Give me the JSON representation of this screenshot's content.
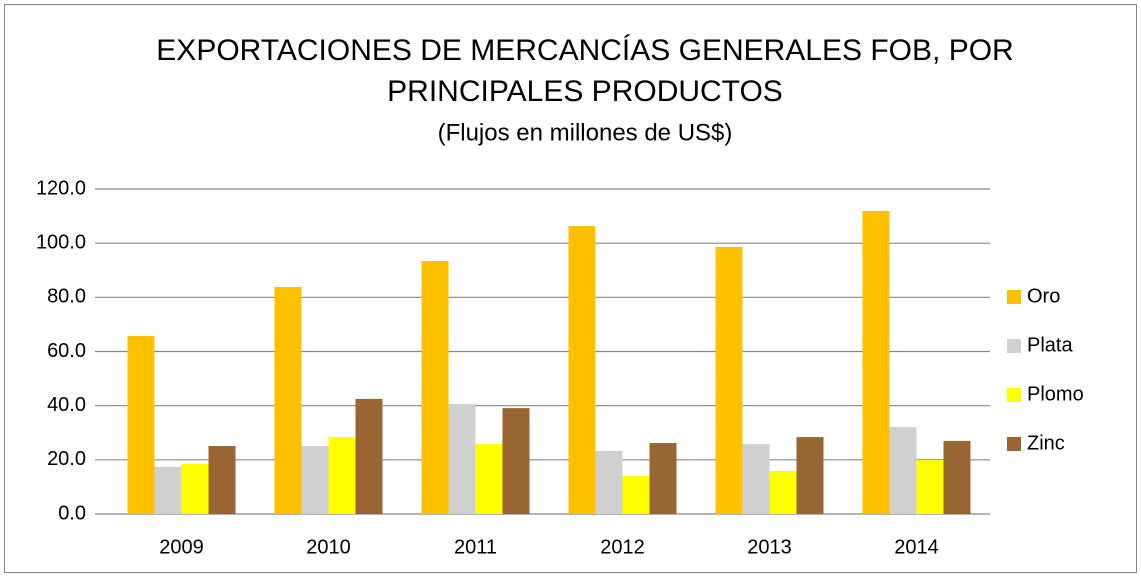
{
  "chart_data": {
    "type": "bar",
    "title": [
      "EXPORTACIONES DE MERCANCÍAS GENERALES FOB, POR",
      "PRINCIPALES PRODUCTOS"
    ],
    "subtitle": "(Flujos en millones de US$)",
    "categories": [
      "2009",
      "2010",
      "2011",
      "2012",
      "2013",
      "2014"
    ],
    "series": [
      {
        "name": "Oro",
        "color": "#ffc000",
        "values": [
          65.7,
          83.8,
          93.4,
          106.3,
          98.6,
          111.9
        ]
      },
      {
        "name": "Plata",
        "color": "#d0d0d0",
        "values": [
          17.4,
          25.1,
          40.6,
          23.3,
          25.8,
          32.1
        ]
      },
      {
        "name": "Plomo",
        "color": "#ffff00",
        "values": [
          18.5,
          28.4,
          25.8,
          14.0,
          15.9,
          19.9
        ]
      },
      {
        "name": "Zinc",
        "color": "#996633",
        "values": [
          25.1,
          42.5,
          39.1,
          26.2,
          28.4,
          27.0
        ]
      }
    ],
    "ylim": [
      0,
      120
    ],
    "yticks": [
      {
        "value": 0,
        "label": "0.0"
      },
      {
        "value": 20,
        "label": "20.0"
      },
      {
        "value": 40,
        "label": "40.0"
      },
      {
        "value": 60,
        "label": "60.0"
      },
      {
        "value": 80,
        "label": "80.0"
      },
      {
        "value": 100,
        "label": "100.0"
      },
      {
        "value": 120,
        "label": "120.0"
      }
    ],
    "grid": true,
    "legend": "right"
  }
}
